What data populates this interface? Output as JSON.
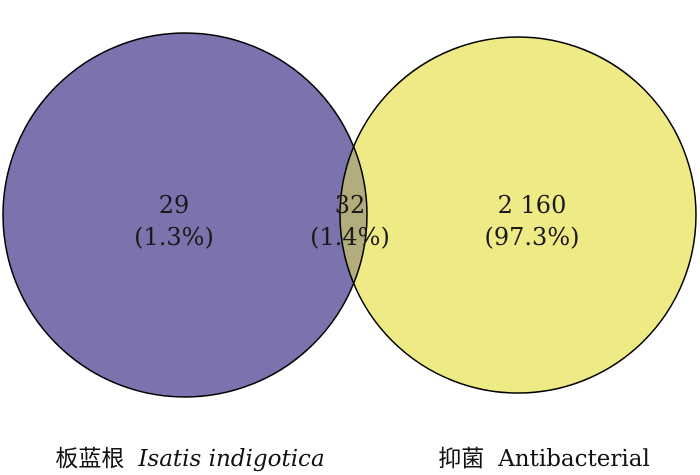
{
  "venn": {
    "left": {
      "count": "29",
      "percent": "(1.3%)",
      "name_cn": "板蓝根",
      "name_latin": "Isatis indigotica",
      "color": "#7a73ad"
    },
    "overlap": {
      "count": "32",
      "percent": "(1.4%)",
      "color": "#b3ad7d"
    },
    "right": {
      "count": "2 160",
      "percent": "(97.3%)",
      "name_cn": "抑菌",
      "name_latin": "Antibacterial",
      "color": "#eeea86"
    },
    "outline_color": "#000000"
  }
}
